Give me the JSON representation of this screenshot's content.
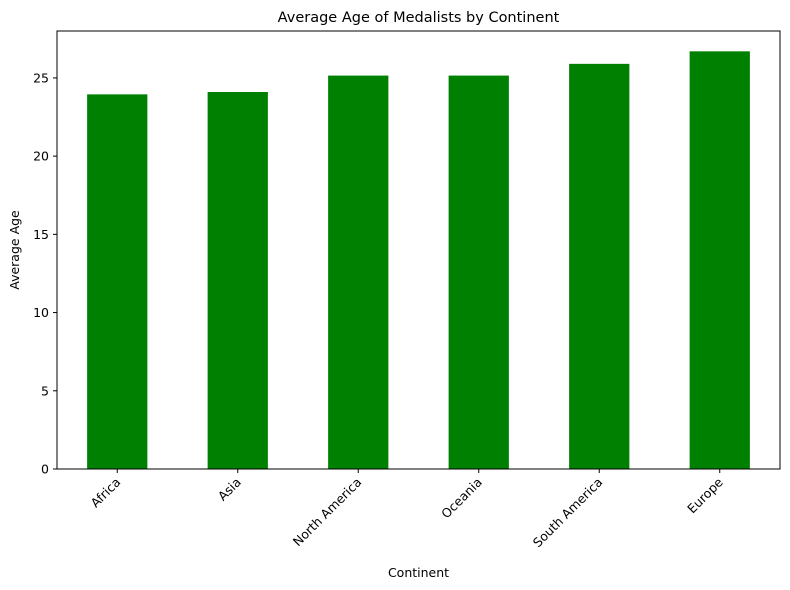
{
  "chart_data": {
    "type": "bar",
    "title": "Average Age of Medalists by Continent",
    "xlabel": "Continent",
    "ylabel": "Average Age",
    "categories": [
      "Africa",
      "Asia",
      "North America",
      "Oceania",
      "South America",
      "Europe"
    ],
    "values": [
      23.95,
      24.1,
      25.15,
      25.15,
      25.9,
      26.7
    ],
    "ylim": [
      0,
      28
    ],
    "yticks": [
      0,
      5,
      10,
      15,
      20,
      25
    ],
    "bar_color": "#008000",
    "grid": false,
    "legend": "none"
  }
}
